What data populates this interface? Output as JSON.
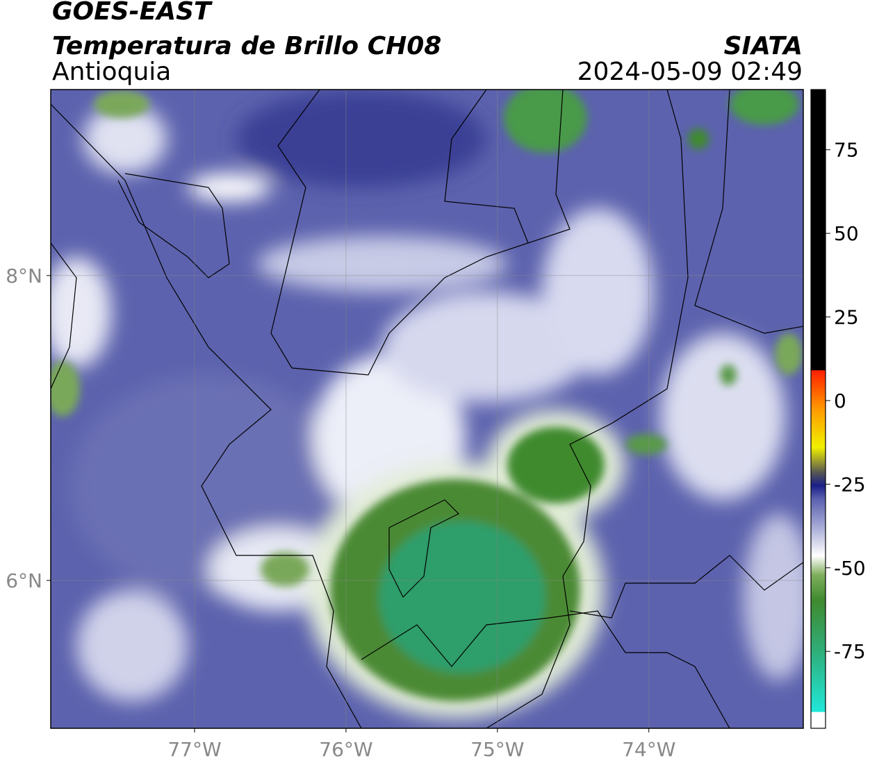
{
  "header": {
    "title": "GOES-EAST",
    "subtitle": "Temperatura de Brillo CH08",
    "region": "Antioquia",
    "source": "SIATA",
    "datetime": "2024-05-09 02:49"
  },
  "map": {
    "xlim": [
      -77.95,
      -72.98
    ],
    "ylim": [
      5.03,
      9.22
    ],
    "xticks": [
      {
        "value": -77,
        "label": "77°W"
      },
      {
        "value": -76,
        "label": "76°W"
      },
      {
        "value": -75,
        "label": "75°W"
      },
      {
        "value": -74,
        "label": "74°W"
      }
    ],
    "yticks": [
      {
        "value": 6,
        "label": "6°N"
      },
      {
        "value": 8,
        "label": "8°N"
      }
    ],
    "grid": true
  },
  "colorbar": {
    "lim": [
      -98,
      93
    ],
    "ticks": [
      -75,
      -50,
      -25,
      0,
      25,
      50,
      75
    ]
  }
}
